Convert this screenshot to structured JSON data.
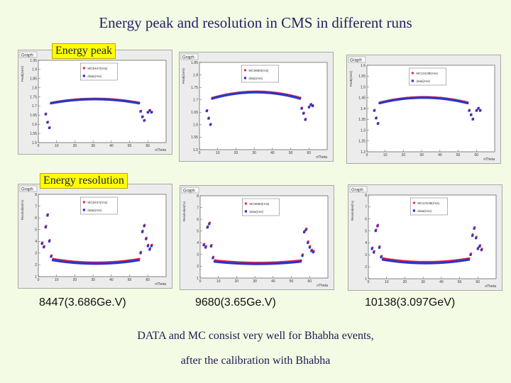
{
  "page": {
    "title": "Energy peak and resolution in CMS in different runs",
    "peak_label": "Energy peak",
    "res_label": "Energy resolution",
    "runs": [
      "8447(3.686Ge.V)",
      "9680(3.65Ge.V)",
      "10138(3.097GeV)"
    ],
    "conclusion_1": "DATA and MC consist very well for Bhabha events,",
    "conclusion_2": "after the calibration with Bhabha"
  },
  "colors": {
    "mc": "#e8213a",
    "data": "#2b35c8",
    "highlight": "#ffff00"
  },
  "chart_data": [
    {
      "type": "scatter",
      "graph_tag": "Graph",
      "xlabel": "nTheta",
      "ylabel": "Peak(GeV)",
      "xlim": [
        0,
        70
      ],
      "ylim": [
        1.5,
        1.95
      ],
      "xticks": [
        0,
        10,
        20,
        30,
        40,
        50,
        60
      ],
      "yticks": [
        1.5,
        1.55,
        1.6,
        1.65,
        1.7,
        1.75,
        1.8,
        1.85,
        1.9,
        1.95
      ],
      "legend": [
        "MC8447(rms)",
        "data(rms)"
      ],
      "curve": {
        "kind": "peak",
        "xmin": 4,
        "xmax": 62,
        "base": 1.715,
        "amp": 0.022,
        "mc_off": 0.003,
        "wings": [
          [
            4,
            1.655
          ],
          [
            5,
            1.61
          ],
          [
            6,
            1.58
          ],
          [
            56,
            1.67
          ],
          [
            57,
            1.64
          ],
          [
            58,
            1.62
          ],
          [
            60,
            1.665
          ],
          [
            61,
            1.675
          ],
          [
            62,
            1.665
          ]
        ]
      }
    },
    {
      "type": "scatter",
      "graph_tag": "Graph",
      "xlabel": "nTheta",
      "ylabel": "Peak(GeV)",
      "xlim": [
        0,
        70
      ],
      "ylim": [
        1.5,
        1.85
      ],
      "xticks": [
        0,
        10,
        20,
        30,
        40,
        50,
        60
      ],
      "yticks": [
        1.5,
        1.55,
        1.6,
        1.65,
        1.7,
        1.75,
        1.8,
        1.85
      ],
      "legend": [
        "MC9680(rms)",
        "data(rms)"
      ],
      "curve": {
        "kind": "peak",
        "xmin": 4,
        "xmax": 62,
        "base": 1.705,
        "amp": 0.025,
        "mc_off": 0.003,
        "wings": [
          [
            4,
            1.655
          ],
          [
            5,
            1.625
          ],
          [
            6,
            1.6
          ],
          [
            56,
            1.665
          ],
          [
            57,
            1.645
          ],
          [
            58,
            1.62
          ],
          [
            60,
            1.67
          ],
          [
            61,
            1.68
          ],
          [
            62,
            1.675
          ]
        ]
      }
    },
    {
      "type": "scatter",
      "graph_tag": "Graph",
      "xlabel": "nTheta",
      "ylabel": "Peak(GeV)",
      "xlim": [
        0,
        70
      ],
      "ylim": [
        1.2,
        1.6
      ],
      "xticks": [
        0,
        10,
        20,
        30,
        40,
        50,
        60
      ],
      "yticks": [
        1.2,
        1.25,
        1.3,
        1.35,
        1.4,
        1.45,
        1.5,
        1.55,
        1.6
      ],
      "legend": [
        "MC10138(rms)",
        "data(rms)"
      ],
      "curve": {
        "kind": "peak",
        "xmin": 4,
        "xmax": 62,
        "base": 1.425,
        "amp": 0.025,
        "mc_off": 0.003,
        "wings": [
          [
            4,
            1.39
          ],
          [
            5,
            1.355
          ],
          [
            6,
            1.33
          ],
          [
            56,
            1.39
          ],
          [
            57,
            1.37
          ],
          [
            58,
            1.35
          ],
          [
            60,
            1.39
          ],
          [
            61,
            1.4
          ],
          [
            62,
            1.39
          ]
        ]
      }
    },
    {
      "type": "scatter",
      "graph_tag": "Graph",
      "xlabel": "nTheta",
      "ylabel": "Resolution(%)",
      "xlim": [
        0,
        70
      ],
      "ylim": [
        1,
        8
      ],
      "xticks": [
        0,
        10,
        20,
        30,
        40,
        50,
        60
      ],
      "yticks": [
        1,
        2,
        3,
        4,
        5,
        6,
        7,
        8
      ],
      "legend": [
        "MC8447(rms)",
        "data(rms)"
      ],
      "curve": {
        "kind": "res",
        "xmin": 2,
        "xmax": 62,
        "base": 2.1,
        "amp": 0.3,
        "mc_off": 0.1,
        "wings": [
          [
            2,
            3.8
          ],
          [
            3,
            3.5
          ],
          [
            4,
            5.2
          ],
          [
            5,
            6.2
          ],
          [
            6,
            4.0
          ],
          [
            7,
            2.7
          ],
          [
            56,
            3.0
          ],
          [
            57,
            4.8
          ],
          [
            58,
            5.3
          ],
          [
            59,
            4.2
          ],
          [
            60,
            3.6
          ],
          [
            61,
            3.3
          ],
          [
            62,
            3.6
          ]
        ]
      }
    },
    {
      "type": "scatter",
      "graph_tag": "Graph",
      "xlabel": "nTheta",
      "ylabel": "Resolution(%)",
      "xlim": [
        0,
        70
      ],
      "ylim": [
        1,
        8
      ],
      "xticks": [
        0,
        10,
        20,
        30,
        40,
        50,
        60
      ],
      "yticks": [
        1,
        2,
        3,
        4,
        5,
        6,
        7,
        8
      ],
      "legend": [
        "MC9680(rms)",
        "data(rms)"
      ],
      "curve": {
        "kind": "res",
        "xmin": 2,
        "xmax": 62,
        "base": 2.2,
        "amp": 0.2,
        "mc_off": 0.1,
        "wings": [
          [
            2,
            3.8
          ],
          [
            3,
            3.6
          ],
          [
            4,
            5.3
          ],
          [
            5,
            5.6
          ],
          [
            6,
            3.7
          ],
          [
            7,
            2.7
          ],
          [
            56,
            2.9
          ],
          [
            57,
            4.9
          ],
          [
            58,
            5.1
          ],
          [
            59,
            4.0
          ],
          [
            60,
            3.6
          ],
          [
            61,
            3.3
          ],
          [
            62,
            3.2
          ]
        ]
      }
    },
    {
      "type": "scatter",
      "graph_tag": "Graph",
      "xlabel": "nTheta",
      "ylabel": "Resolution(%)",
      "xlim": [
        0,
        70
      ],
      "ylim": [
        1,
        8
      ],
      "xticks": [
        0,
        10,
        20,
        30,
        40,
        50,
        60
      ],
      "yticks": [
        1,
        2,
        3,
        4,
        5,
        6,
        7,
        8
      ],
      "legend": [
        "MC10138(rms)",
        "data(rms)"
      ],
      "curve": {
        "kind": "res",
        "xmin": 2,
        "xmax": 62,
        "base": 2.3,
        "amp": 0.3,
        "mc_off": 0.1,
        "wings": [
          [
            2,
            3.5
          ],
          [
            3,
            3.2
          ],
          [
            4,
            5.0
          ],
          [
            5,
            5.4
          ],
          [
            6,
            3.6
          ],
          [
            7,
            2.8
          ],
          [
            56,
            3.0
          ],
          [
            57,
            4.6
          ],
          [
            58,
            5.2
          ],
          [
            59,
            4.4
          ],
          [
            60,
            3.5
          ],
          [
            61,
            3.7
          ],
          [
            62,
            3.4
          ]
        ]
      }
    }
  ]
}
